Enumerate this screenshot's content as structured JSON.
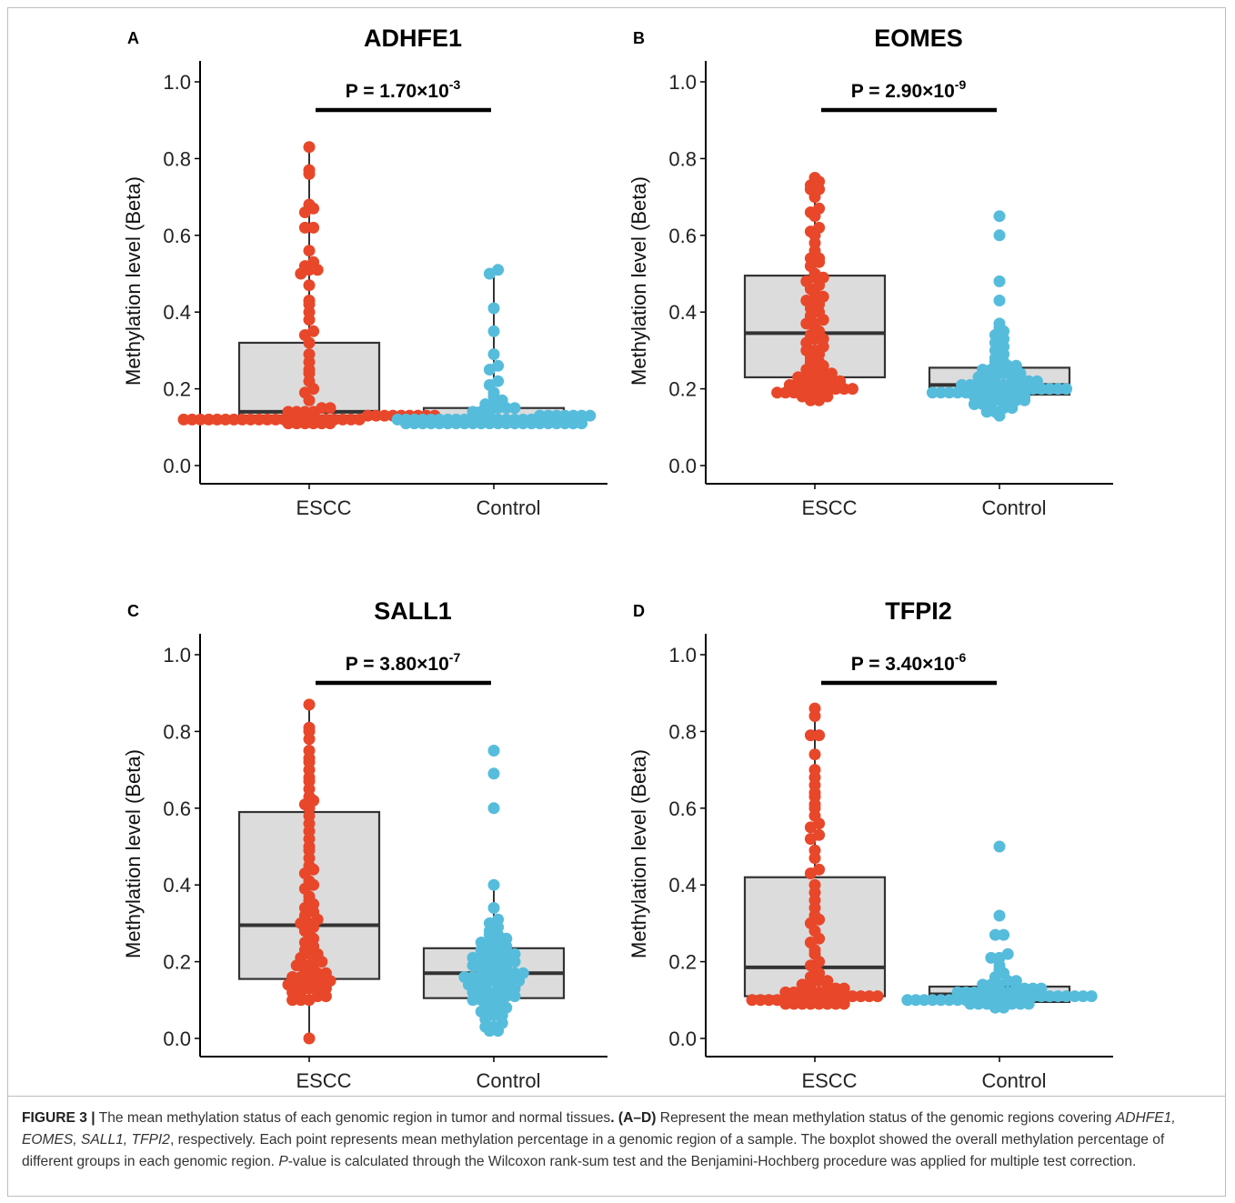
{
  "caption": {
    "fig_label": "FIGURE 3 |",
    "part1": " The mean methylation status of each genomic region in tumor and normal tissues",
    "part2": ". (A–D)",
    "part3": " Represent the mean methylation status of the genomic regions covering ",
    "genes": "ADHFE1, EOMES, SALL1, TFPI2",
    "part4": ", respectively. Each point represents mean methylation percentage in a genomic region of a sample. The boxplot showed the overall methylation percentage of different groups in each genomic region. ",
    "p_italic": "P",
    "part5": "-value is calculated through the Wilcoxon rank-sum test and the Benjamini-Hochberg procedure was applied for multiple test correction."
  },
  "colors": {
    "escc": "#e8472a",
    "control": "#56bcdc",
    "box_fill": "#dcdcdc",
    "box_stroke": "#333333"
  },
  "chart_data": [
    {
      "panel": "A",
      "type": "box+scatter",
      "title": "ADHFE1",
      "ylabel": "Methylation level (Beta)",
      "ylim": [
        0.0,
        1.0
      ],
      "yticks": [
        "0.0",
        "0.2",
        "0.4",
        "0.6",
        "0.8",
        "1.0"
      ],
      "categories": [
        "ESCC",
        "Control"
      ],
      "p_value": {
        "prefix": "P = 1.70×10",
        "exp": "-3"
      },
      "boxes": [
        {
          "group": "ESCC",
          "q1": 0.13,
          "median": 0.14,
          "q3": 0.32,
          "whisker_low": 0.11,
          "whisker_high": 0.83
        },
        {
          "group": "Control",
          "q1": 0.115,
          "median": 0.125,
          "q3": 0.15,
          "whisker_low": 0.11,
          "whisker_high": 0.51
        }
      ],
      "points": {
        "ESCC": [
          0.83,
          0.77,
          0.76,
          0.68,
          0.67,
          0.66,
          0.62,
          0.62,
          0.56,
          0.53,
          0.52,
          0.51,
          0.51,
          0.5,
          0.47,
          0.43,
          0.42,
          0.4,
          0.38,
          0.35,
          0.34,
          0.32,
          0.29,
          0.27,
          0.25,
          0.24,
          0.22,
          0.2,
          0.19,
          0.17,
          0.15,
          0.15,
          0.14,
          0.14,
          0.14,
          0.14,
          0.13,
          0.13,
          0.13,
          0.13,
          0.13,
          0.13,
          0.13,
          0.13,
          0.13,
          0.12,
          0.12,
          0.12,
          0.12,
          0.12,
          0.12,
          0.12,
          0.12,
          0.12,
          0.12,
          0.12,
          0.12,
          0.12,
          0.12,
          0.12,
          0.12,
          0.12,
          0.12,
          0.12,
          0.12,
          0.12,
          0.12,
          0.11,
          0.11,
          0.11,
          0.11,
          0.11,
          0.11
        ],
        "Control": [
          0.51,
          0.5,
          0.41,
          0.35,
          0.29,
          0.26,
          0.25,
          0.22,
          0.21,
          0.19,
          0.18,
          0.17,
          0.16,
          0.16,
          0.15,
          0.15,
          0.15,
          0.14,
          0.14,
          0.14,
          0.13,
          0.13,
          0.13,
          0.13,
          0.13,
          0.13,
          0.13,
          0.12,
          0.12,
          0.12,
          0.12,
          0.12,
          0.12,
          0.12,
          0.12,
          0.12,
          0.12,
          0.12,
          0.12,
          0.12,
          0.12,
          0.12,
          0.12,
          0.12,
          0.11,
          0.11,
          0.11,
          0.11,
          0.11,
          0.11,
          0.11,
          0.11,
          0.11,
          0.11,
          0.11,
          0.11,
          0.11,
          0.11,
          0.11,
          0.11,
          0.11,
          0.11,
          0.11,
          0.11,
          0.11,
          0.11
        ]
      }
    },
    {
      "panel": "B",
      "type": "box+scatter",
      "title": "EOMES",
      "ylabel": "Methylation level (Beta)",
      "ylim": [
        0.0,
        1.0
      ],
      "yticks": [
        "0.0",
        "0.2",
        "0.4",
        "0.6",
        "0.8",
        "1.0"
      ],
      "categories": [
        "ESCC",
        "Control"
      ],
      "p_value": {
        "prefix": "P = 2.90×10",
        "exp": "-9"
      },
      "boxes": [
        {
          "group": "ESCC",
          "q1": 0.23,
          "median": 0.345,
          "q3": 0.495,
          "whisker_low": 0.17,
          "whisker_high": 0.75
        },
        {
          "group": "Control",
          "q1": 0.185,
          "median": 0.21,
          "q3": 0.255,
          "whisker_low": 0.13,
          "whisker_high": 0.37
        }
      ],
      "points": {
        "ESCC": [
          0.75,
          0.74,
          0.73,
          0.72,
          0.72,
          0.7,
          0.67,
          0.66,
          0.65,
          0.62,
          0.61,
          0.6,
          0.58,
          0.56,
          0.54,
          0.54,
          0.53,
          0.52,
          0.5,
          0.49,
          0.49,
          0.48,
          0.47,
          0.46,
          0.45,
          0.44,
          0.43,
          0.43,
          0.42,
          0.41,
          0.4,
          0.39,
          0.38,
          0.37,
          0.37,
          0.36,
          0.35,
          0.34,
          0.33,
          0.33,
          0.32,
          0.31,
          0.3,
          0.3,
          0.29,
          0.28,
          0.27,
          0.27,
          0.26,
          0.25,
          0.25,
          0.24,
          0.24,
          0.23,
          0.23,
          0.23,
          0.22,
          0.22,
          0.22,
          0.21,
          0.21,
          0.21,
          0.21,
          0.2,
          0.2,
          0.2,
          0.2,
          0.2,
          0.2,
          0.19,
          0.19,
          0.19,
          0.19,
          0.18,
          0.18,
          0.18,
          0.18,
          0.17,
          0.17
        ],
        "Control": [
          0.65,
          0.6,
          0.48,
          0.43,
          0.37,
          0.36,
          0.35,
          0.34,
          0.33,
          0.32,
          0.31,
          0.3,
          0.29,
          0.28,
          0.27,
          0.27,
          0.26,
          0.26,
          0.25,
          0.25,
          0.25,
          0.24,
          0.24,
          0.24,
          0.23,
          0.23,
          0.23,
          0.22,
          0.22,
          0.22,
          0.22,
          0.21,
          0.21,
          0.21,
          0.21,
          0.21,
          0.21,
          0.2,
          0.2,
          0.2,
          0.2,
          0.2,
          0.2,
          0.2,
          0.2,
          0.2,
          0.19,
          0.19,
          0.19,
          0.19,
          0.19,
          0.19,
          0.19,
          0.19,
          0.18,
          0.18,
          0.18,
          0.18,
          0.18,
          0.18,
          0.18,
          0.17,
          0.17,
          0.17,
          0.17,
          0.16,
          0.16,
          0.16,
          0.15,
          0.15,
          0.14,
          0.14,
          0.13
        ]
      }
    },
    {
      "panel": "C",
      "type": "box+scatter",
      "title": "SALL1",
      "ylabel": "Methylation level (Beta)",
      "ylim": [
        0.0,
        1.0
      ],
      "yticks": [
        "0.0",
        "0.2",
        "0.4",
        "0.6",
        "0.8",
        "1.0"
      ],
      "categories": [
        "ESCC",
        "Control"
      ],
      "p_value": {
        "prefix": "P = 3.80×10",
        "exp": "-7"
      },
      "boxes": [
        {
          "group": "ESCC",
          "q1": 0.155,
          "median": 0.295,
          "q3": 0.59,
          "whisker_low": 0.0,
          "whisker_high": 0.87
        },
        {
          "group": "Control",
          "q1": 0.105,
          "median": 0.17,
          "q3": 0.235,
          "whisker_low": 0.02,
          "whisker_high": 0.4
        }
      ],
      "points": {
        "ESCC": [
          0.87,
          0.81,
          0.8,
          0.78,
          0.75,
          0.73,
          0.72,
          0.7,
          0.68,
          0.67,
          0.65,
          0.63,
          0.62,
          0.61,
          0.6,
          0.58,
          0.56,
          0.54,
          0.52,
          0.5,
          0.49,
          0.47,
          0.45,
          0.44,
          0.43,
          0.41,
          0.4,
          0.39,
          0.37,
          0.36,
          0.35,
          0.34,
          0.33,
          0.32,
          0.31,
          0.3,
          0.3,
          0.29,
          0.28,
          0.27,
          0.26,
          0.25,
          0.24,
          0.23,
          0.22,
          0.22,
          0.21,
          0.2,
          0.2,
          0.19,
          0.19,
          0.18,
          0.18,
          0.17,
          0.17,
          0.16,
          0.16,
          0.16,
          0.15,
          0.15,
          0.15,
          0.14,
          0.14,
          0.14,
          0.13,
          0.13,
          0.13,
          0.12,
          0.12,
          0.11,
          0.11,
          0.1,
          0.1,
          0.1,
          0.0
        ],
        "Control": [
          0.75,
          0.69,
          0.6,
          0.4,
          0.34,
          0.31,
          0.3,
          0.29,
          0.28,
          0.27,
          0.27,
          0.26,
          0.26,
          0.25,
          0.25,
          0.24,
          0.24,
          0.23,
          0.23,
          0.22,
          0.22,
          0.22,
          0.21,
          0.21,
          0.21,
          0.2,
          0.2,
          0.2,
          0.19,
          0.19,
          0.19,
          0.18,
          0.18,
          0.18,
          0.18,
          0.17,
          0.17,
          0.17,
          0.17,
          0.16,
          0.16,
          0.16,
          0.16,
          0.15,
          0.15,
          0.15,
          0.15,
          0.14,
          0.14,
          0.14,
          0.13,
          0.13,
          0.13,
          0.12,
          0.12,
          0.12,
          0.11,
          0.11,
          0.11,
          0.1,
          0.1,
          0.1,
          0.09,
          0.09,
          0.09,
          0.08,
          0.08,
          0.07,
          0.07,
          0.06,
          0.06,
          0.05,
          0.04,
          0.03,
          0.03,
          0.02,
          0.02
        ]
      }
    },
    {
      "panel": "D",
      "type": "box+scatter",
      "title": "TFPI2",
      "ylabel": "Methylation level (Beta)",
      "ylim": [
        0.0,
        1.0
      ],
      "yticks": [
        "0.0",
        "0.2",
        "0.4",
        "0.6",
        "0.8",
        "1.0"
      ],
      "categories": [
        "ESCC",
        "Control"
      ],
      "p_value": {
        "prefix": "P = 3.40×10",
        "exp": "-6"
      },
      "boxes": [
        {
          "group": "ESCC",
          "q1": 0.11,
          "median": 0.185,
          "q3": 0.42,
          "whisker_low": 0.09,
          "whisker_high": 0.86
        },
        {
          "group": "Control",
          "q1": 0.095,
          "median": 0.115,
          "q3": 0.135,
          "whisker_low": 0.08,
          "whisker_high": 0.22
        }
      ],
      "points": {
        "ESCC": [
          0.86,
          0.84,
          0.79,
          0.79,
          0.74,
          0.7,
          0.68,
          0.66,
          0.64,
          0.63,
          0.61,
          0.6,
          0.58,
          0.56,
          0.55,
          0.53,
          0.52,
          0.49,
          0.47,
          0.44,
          0.43,
          0.4,
          0.38,
          0.36,
          0.34,
          0.32,
          0.31,
          0.3,
          0.28,
          0.26,
          0.25,
          0.23,
          0.22,
          0.2,
          0.19,
          0.18,
          0.17,
          0.16,
          0.15,
          0.15,
          0.14,
          0.14,
          0.13,
          0.13,
          0.13,
          0.12,
          0.12,
          0.12,
          0.12,
          0.12,
          0.11,
          0.11,
          0.11,
          0.11,
          0.11,
          0.11,
          0.11,
          0.1,
          0.1,
          0.1,
          0.1,
          0.1,
          0.1,
          0.1,
          0.1,
          0.1,
          0.09,
          0.09,
          0.09,
          0.09,
          0.09,
          0.09,
          0.09,
          0.09
        ],
        "Control": [
          0.5,
          0.32,
          0.27,
          0.27,
          0.22,
          0.21,
          0.21,
          0.19,
          0.18,
          0.17,
          0.16,
          0.15,
          0.15,
          0.14,
          0.14,
          0.14,
          0.13,
          0.13,
          0.13,
          0.13,
          0.12,
          0.12,
          0.12,
          0.12,
          0.12,
          0.12,
          0.12,
          0.11,
          0.11,
          0.11,
          0.11,
          0.11,
          0.11,
          0.11,
          0.11,
          0.11,
          0.11,
          0.1,
          0.1,
          0.1,
          0.1,
          0.1,
          0.1,
          0.1,
          0.1,
          0.1,
          0.1,
          0.1,
          0.1,
          0.1,
          0.09,
          0.09,
          0.09,
          0.09,
          0.09,
          0.09,
          0.09,
          0.09,
          0.08,
          0.08
        ]
      }
    }
  ]
}
